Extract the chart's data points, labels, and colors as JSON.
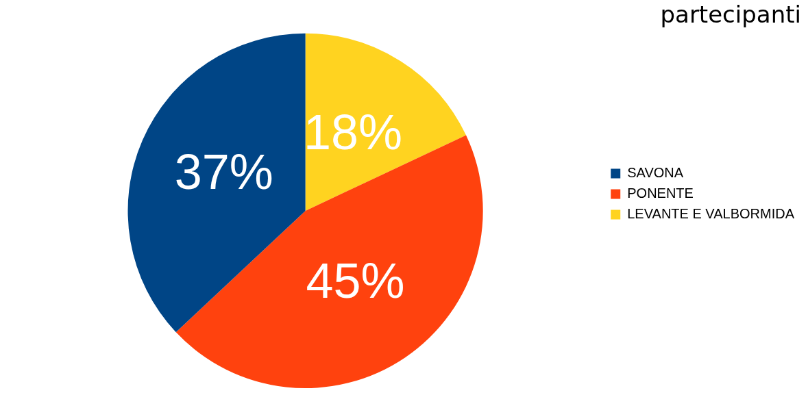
{
  "chart_data": {
    "type": "pie",
    "title": "partecipanti",
    "categories": [
      "SAVONA",
      "PONENTE",
      "LEVANTE E VALBORMIDA"
    ],
    "values": [
      37,
      45,
      18
    ],
    "colors": [
      "#004586",
      "#ff420e",
      "#ffd320"
    ],
    "value_labels": [
      "37%",
      "45%",
      "18%"
    ],
    "legend": "right"
  }
}
